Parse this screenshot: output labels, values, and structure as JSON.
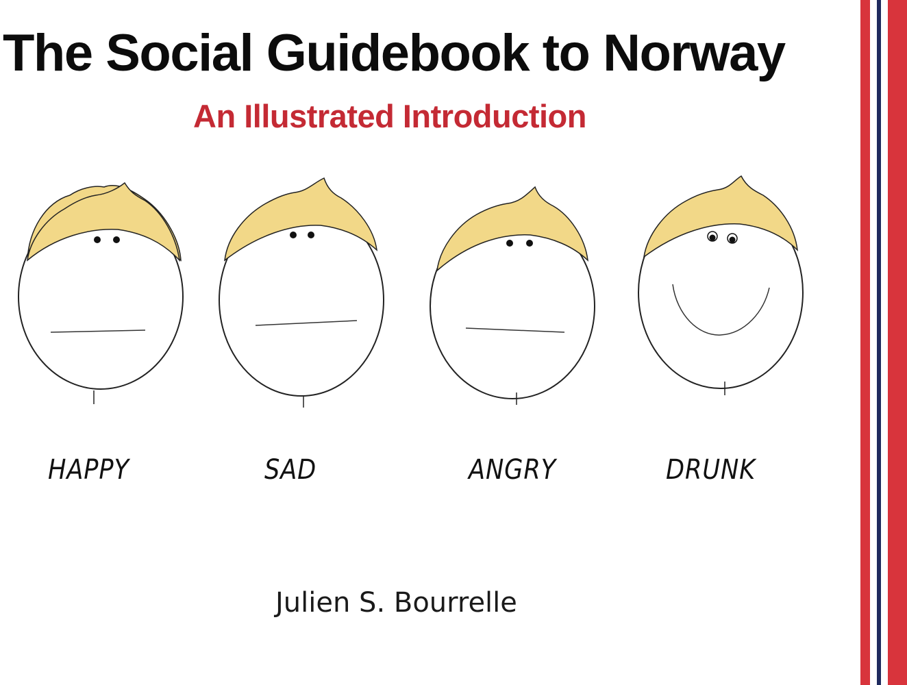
{
  "cover": {
    "title": "The Social Guidebook to Norway",
    "subtitle": "An Illustrated Introduction",
    "author": "Julien S. Bourrelle"
  },
  "faces": [
    {
      "label": "HAPPY",
      "mouth": "flat"
    },
    {
      "label": "SAD",
      "mouth": "flat"
    },
    {
      "label": "ANGRY",
      "mouth": "flat"
    },
    {
      "label": "DRUNK",
      "mouth": "smile"
    }
  ],
  "colors": {
    "title": "#0c0c0c",
    "subtitle": "#c42a34",
    "hair": "#f2d888",
    "flag_red": "#d8343c",
    "flag_blue": "#1f2a5e",
    "flag_white": "#ffffff"
  }
}
